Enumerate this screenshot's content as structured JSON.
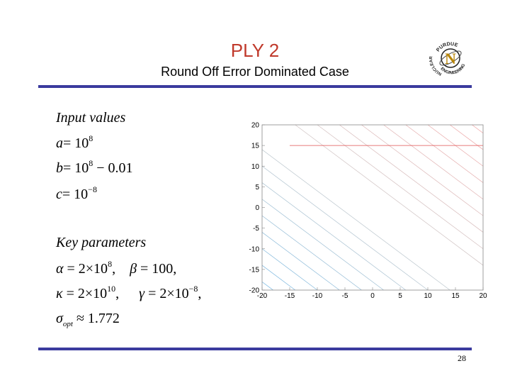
{
  "slide": {
    "title": "PLY 2",
    "subtitle": "Round Off Error Dominated Case",
    "page_number": "28"
  },
  "logo": {
    "top_text": "PURDUE",
    "side_text": "NUCLEAR",
    "bottom_text": "ENGINEERING",
    "letter": "N"
  },
  "input_values": {
    "heading": "Input  values",
    "a_lhs": "a",
    "a_rhs": "= 10",
    "a_exp": "8",
    "b_lhs": "b",
    "b_rhs_1": "= 10",
    "b_exp": "8",
    "b_rhs_2": " − 0.01",
    "c_lhs": "c",
    "c_rhs": "= 10",
    "c_exp": "−8"
  },
  "key_parameters": {
    "heading": "Key  parameters",
    "alpha": "α",
    "alpha_rhs": " = 2×10",
    "alpha_exp": "8",
    "alpha_sep": ",",
    "beta": "β",
    "beta_rhs": " = 100,",
    "kappa": "κ",
    "kappa_rhs": " = 2×10",
    "kappa_exp": "10",
    "kappa_sep": ",",
    "gamma": "γ",
    "gamma_rhs": " = 2×10",
    "gamma_exp": "−8",
    "gamma_sep": ",",
    "sigma": "σ",
    "sigma_sub": "opt",
    "sigma_rhs": " ≈ 1.772"
  },
  "chart_data": {
    "type": "contour",
    "x_ticks": [
      "-20",
      "-15",
      "-10",
      "-5",
      "0",
      "5",
      "10",
      "15",
      "20"
    ],
    "y_ticks": [
      "20",
      "15",
      "10",
      "5",
      "0",
      "-5",
      "-10",
      "-15",
      "-20"
    ],
    "xlim": [
      -20,
      20
    ],
    "ylim": [
      -20,
      20
    ],
    "contour_slope": -1,
    "contour_offsets": [
      -38,
      -34,
      -30,
      -26,
      -22,
      -18,
      -14,
      -10,
      -6,
      6,
      10,
      14,
      18,
      22,
      26,
      30,
      34,
      38
    ],
    "highlight_line": {
      "y": 15,
      "x_from": -15,
      "x_to": 20
    },
    "colors": {
      "contour_low": "#6fb3e0",
      "contour_mid": "#c9c9c9",
      "contour_high": "#f0a0a0",
      "highlight": "#e05050",
      "axis": "#888888"
    }
  }
}
